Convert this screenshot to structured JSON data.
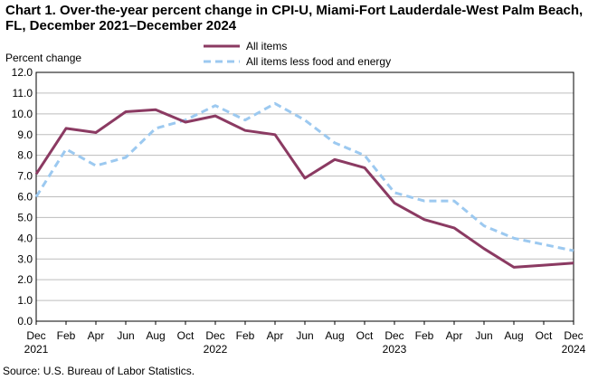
{
  "chart_data": {
    "type": "line",
    "title": "Chart 1. Over-the-year percent change in CPI-U, Miami-Fort Lauderdale-West Palm Beach, FL, December 2021–December 2024",
    "ylabel": "Percent change",
    "xlabel": "",
    "ylim": [
      0.0,
      12.0
    ],
    "y_ticks": [
      "0.0",
      "1.0",
      "2.0",
      "3.0",
      "4.0",
      "5.0",
      "6.0",
      "7.0",
      "8.0",
      "9.0",
      "10.0",
      "11.0",
      "12.0"
    ],
    "x_ticks": [
      {
        "label": "Dec",
        "year": "2021"
      },
      {
        "label": "Feb",
        "year": ""
      },
      {
        "label": "Apr",
        "year": ""
      },
      {
        "label": "Jun",
        "year": ""
      },
      {
        "label": "Aug",
        "year": ""
      },
      {
        "label": "Oct",
        "year": ""
      },
      {
        "label": "Dec",
        "year": "2022"
      },
      {
        "label": "Feb",
        "year": ""
      },
      {
        "label": "Apr",
        "year": ""
      },
      {
        "label": "Jun",
        "year": ""
      },
      {
        "label": "Aug",
        "year": ""
      },
      {
        "label": "Oct",
        "year": ""
      },
      {
        "label": "Dec",
        "year": "2023"
      },
      {
        "label": "Feb",
        "year": ""
      },
      {
        "label": "Apr",
        "year": ""
      },
      {
        "label": "Jun",
        "year": ""
      },
      {
        "label": "Aug",
        "year": ""
      },
      {
        "label": "Oct",
        "year": ""
      },
      {
        "label": "Dec",
        "year": "2024"
      }
    ],
    "grid": true,
    "legend_position": "top-center",
    "series": [
      {
        "name": "All items",
        "color": "#8B3A62",
        "dash": "solid",
        "values": [
          7.1,
          9.3,
          9.1,
          10.1,
          10.2,
          9.6,
          9.9,
          9.2,
          9.0,
          6.9,
          7.8,
          7.4,
          5.7,
          4.9,
          4.5,
          3.5,
          2.6,
          2.7,
          2.8
        ]
      },
      {
        "name": "All items less food and energy",
        "color": "#9CC9F0",
        "dash": "dashed",
        "values": [
          6.0,
          8.3,
          7.5,
          7.9,
          9.3,
          9.7,
          10.4,
          9.7,
          10.5,
          9.7,
          8.6,
          8.0,
          6.2,
          5.8,
          5.8,
          4.6,
          4.0,
          3.7,
          3.4
        ]
      }
    ]
  },
  "source": "Source: U.S. Bureau of Labor Statistics."
}
